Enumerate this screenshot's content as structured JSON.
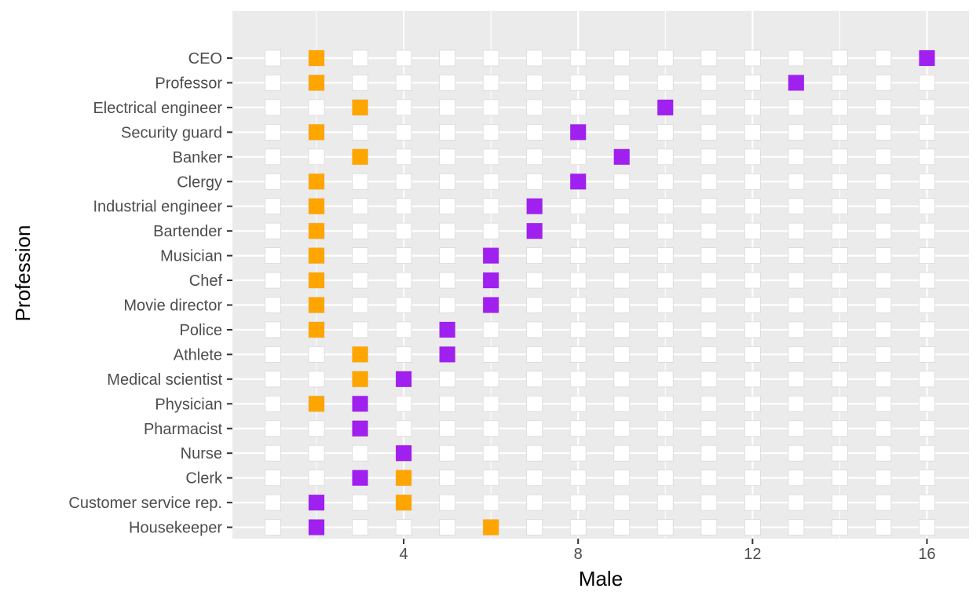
{
  "chart_data": {
    "type": "scatter",
    "xlabel": "Male",
    "ylabel": "Profession",
    "xlim": [
      0.2,
      16.8
    ],
    "x_ticks": [
      4,
      8,
      12,
      16
    ],
    "grid": "on",
    "categories": [
      "CEO",
      "Professor",
      "Electrical engineer",
      "Security guard",
      "Banker",
      "Clergy",
      "Industrial engineer",
      "Bartender",
      "Musician",
      "Chef",
      "Movie director",
      "Police",
      "Athlete",
      "Medical scientist",
      "Physician",
      "Pharmacist",
      "Nurse",
      "Clerk",
      "Customer service rep.",
      "Housekeeper"
    ],
    "grid_positions": [
      1,
      2,
      3,
      4,
      5,
      6,
      7,
      8,
      9,
      10,
      11,
      12,
      13,
      14,
      15,
      16
    ],
    "series": [
      {
        "color": "#ffa500",
        "values": [
          2,
          2,
          3,
          2,
          3,
          2,
          2,
          2,
          2,
          2,
          2,
          2,
          3,
          3,
          2,
          3,
          4,
          4,
          4,
          6
        ]
      },
      {
        "color": "#a020f0",
        "values": [
          16,
          13,
          10,
          8,
          9,
          8,
          7,
          7,
          6,
          6,
          6,
          5,
          5,
          4,
          3,
          3,
          4,
          3,
          2,
          2
        ]
      }
    ],
    "colors": {
      "panel": "#ebebeb",
      "grid": "#ffffff",
      "empty_box": "#ffffff",
      "empty_box_border": "#d9d9d9"
    }
  }
}
